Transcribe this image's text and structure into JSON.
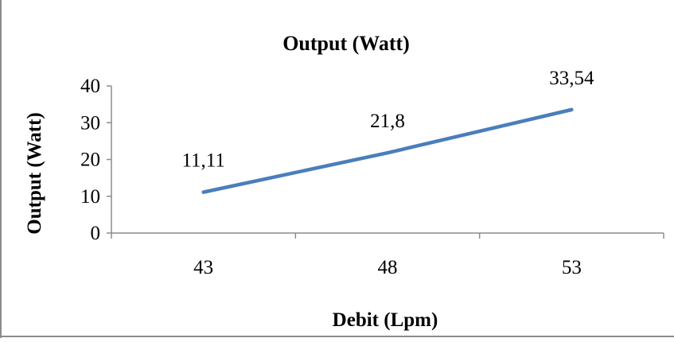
{
  "chart_data": {
    "type": "line",
    "title": "Output (Watt)",
    "xlabel": "Debit (Lpm)",
    "ylabel": "Output (Watt)",
    "categories": [
      "43",
      "48",
      "53"
    ],
    "series": [
      {
        "values": [
          11.11,
          21.8,
          33.54
        ],
        "data_labels": [
          "11,11",
          "21,8",
          "33,54"
        ],
        "color": "#4a7ebb"
      }
    ],
    "ylim": [
      0,
      40
    ],
    "yticks": [
      "0",
      "10",
      "20",
      "30",
      "40"
    ],
    "grid": false,
    "legend": "none"
  }
}
